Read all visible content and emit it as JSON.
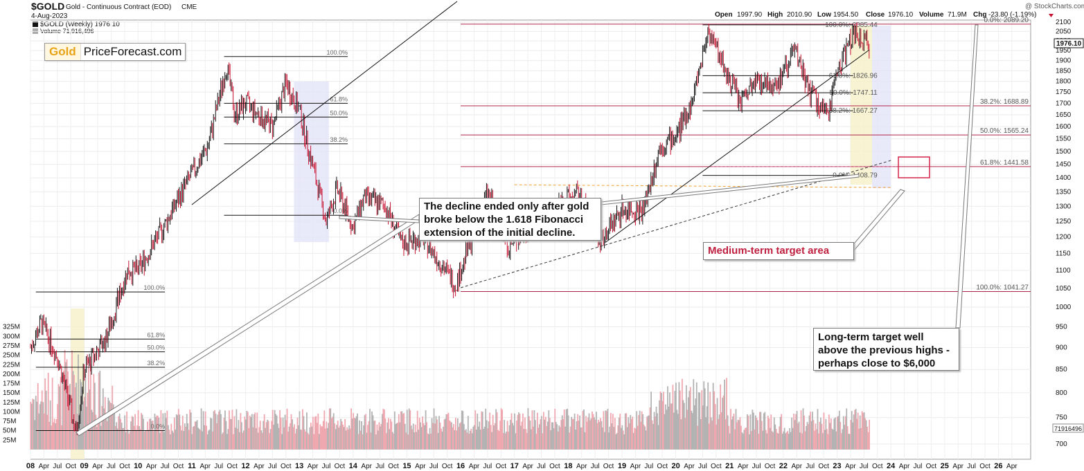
{
  "header": {
    "symbol": "$GOLD",
    "name": "Gold - Continuous Contract (EOD)",
    "exchange": "CME",
    "date": "4-Aug-2023",
    "legend_price": "$GOLD (Weekly) 1976.10",
    "legend_volume": "Volume 71,916,496",
    "watermark": "@ StockCharts.com",
    "ohlc": {
      "open_label": "Open",
      "open": "1997.90",
      "high_label": "High",
      "high": "2010.90",
      "low_label": "Low",
      "low": "1954.50",
      "close_label": "Close",
      "close": "1976.10",
      "volume_label": "Volume",
      "volume": "71.9M",
      "chg_label": "Chg",
      "chg": "-23.80 (-1.19%)"
    }
  },
  "logo": {
    "gold": "Gold",
    "rest": "PriceForecast.com"
  },
  "annotations": {
    "decline": "The decline ended only after gold broke below the 1.618 Fibonacci extension of the initial decline.",
    "long_term": "Long-term target well above the previous highs - perhaps close to $6,000",
    "medium_term": "Medium-term target area"
  },
  "colors": {
    "up": "#111111",
    "down": "#c8102e",
    "fib_line": "#b0244a",
    "vol_up": "#b3b3b3",
    "vol_down": "#f0a8b0",
    "highlight_blue": "#e2e4f7",
    "highlight_yellow": "#f5f0c8",
    "target_box": "#d6244a"
  },
  "chart_data": {
    "type": "candlestick",
    "price_axis_ticks": [
      700,
      750,
      800,
      850,
      900,
      950,
      1000,
      1050,
      1100,
      1150,
      1200,
      1250,
      1300,
      1350,
      1400,
      1450,
      1500,
      1550,
      1600,
      1650,
      1700,
      1750,
      1800,
      1850,
      1900,
      1950,
      2000,
      2050,
      2100
    ],
    "price_axis_scale": "log",
    "volume_axis_ticks": [
      "25M",
      "50M",
      "75M",
      "100M",
      "125M",
      "150M",
      "175M",
      "200M",
      "225M",
      "250M",
      "275M",
      "300M",
      "325M"
    ],
    "x_labels": [
      "08",
      "Apr",
      "Jul",
      "Oct",
      "09",
      "Apr",
      "Jul",
      "Oct",
      "10",
      "Apr",
      "Jul",
      "Oct",
      "11",
      "Apr",
      "Jul",
      "Oct",
      "12",
      "Apr",
      "Jul",
      "Oct",
      "13",
      "Apr",
      "Jul",
      "Oct",
      "14",
      "Apr",
      "Jul",
      "Oct",
      "15",
      "Apr",
      "Jul",
      "Oct",
      "16",
      "Apr",
      "Jul",
      "Oct",
      "17",
      "Apr",
      "Jul",
      "Oct",
      "18",
      "Apr",
      "Jul",
      "Oct",
      "19",
      "Apr",
      "Jul",
      "Oct",
      "20",
      "Apr",
      "Jul",
      "Oct",
      "21",
      "Apr",
      "Jul",
      "Oct",
      "22",
      "Apr",
      "Jul",
      "Oct",
      "23",
      "Apr",
      "Jul",
      "Oct",
      "24",
      "Apr",
      "Jul",
      "Oct",
      "25",
      "Apr",
      "Jul",
      "Oct",
      "26",
      "Apr"
    ],
    "current_price_label": "1976.10",
    "current_volume_label": "71916496",
    "price_path": [
      [
        2008.0,
        900
      ],
      [
        2008.2,
        960
      ],
      [
        2008.5,
        880
      ],
      [
        2008.85,
        720
      ],
      [
        2009.0,
        850
      ],
      [
        2009.4,
        920
      ],
      [
        2009.8,
        1100
      ],
      [
        2010.0,
        1100
      ],
      [
        2010.5,
        1240
      ],
      [
        2010.9,
        1380
      ],
      [
        2011.3,
        1520
      ],
      [
        2011.65,
        1880
      ],
      [
        2011.8,
        1650
      ],
      [
        2012.0,
        1700
      ],
      [
        2012.5,
        1600
      ],
      [
        2012.75,
        1790
      ],
      [
        2013.0,
        1670
      ],
      [
        2013.3,
        1400
      ],
      [
        2013.5,
        1250
      ],
      [
        2013.7,
        1360
      ],
      [
        2014.0,
        1230
      ],
      [
        2014.2,
        1330
      ],
      [
        2014.6,
        1300
      ],
      [
        2014.9,
        1180
      ],
      [
        2015.3,
        1200
      ],
      [
        2015.9,
        1060
      ],
      [
        2016.0,
        1100
      ],
      [
        2016.5,
        1350
      ],
      [
        2016.9,
        1170
      ],
      [
        2017.5,
        1270
      ],
      [
        2017.9,
        1320
      ],
      [
        2018.2,
        1340
      ],
      [
        2018.6,
        1190
      ],
      [
        2019.0,
        1290
      ],
      [
        2019.4,
        1290
      ],
      [
        2019.7,
        1520
      ],
      [
        2020.0,
        1560
      ],
      [
        2020.3,
        1700
      ],
      [
        2020.6,
        2060
      ],
      [
        2020.9,
        1870
      ],
      [
        2021.2,
        1700
      ],
      [
        2021.5,
        1800
      ],
      [
        2021.9,
        1790
      ],
      [
        2022.2,
        1950
      ],
      [
        2022.5,
        1750
      ],
      [
        2022.8,
        1640
      ],
      [
        2023.0,
        1850
      ],
      [
        2023.3,
        2040
      ],
      [
        2023.6,
        1970
      ]
    ],
    "fib_levels_right": [
      {
        "label": "0.0%: 2089.20",
        "value": 2089.2
      },
      {
        "label": "38.2%: 1688.89",
        "value": 1688.89
      },
      {
        "label": "50.0%: 1565.24",
        "value": 1565.24
      },
      {
        "label": "61.8%: 1441.58",
        "value": 1441.58
      },
      {
        "label": "100.0%: 1041.27",
        "value": 1041.27
      }
    ],
    "fib_levels_recent": [
      {
        "label": "100.0%: 2085.44",
        "value": 2085.44
      },
      {
        "label": "61.8%: 1826.96",
        "value": 1826.96
      },
      {
        "label": "50.0%: 1747.11",
        "value": 1747.11
      },
      {
        "label": "38.2%: 1667.27",
        "value": 1667.27
      },
      {
        "label": "0.0%: 1408.79",
        "value": 1408.79
      }
    ],
    "fib_levels_2011": [
      {
        "label": "100.0%",
        "value": 1920
      },
      {
        "label": "61.8%",
        "value": 1700
      },
      {
        "label": "50.0%",
        "value": 1640
      },
      {
        "label": "38.2%",
        "value": 1530
      },
      {
        "label": "0.0%",
        "value": 1270
      }
    ],
    "fib_levels_2008": [
      {
        "label": "100.0%",
        "value": 1040
      },
      {
        "label": "61.8%",
        "value": 920
      },
      {
        "label": "50.0%",
        "value": 890
      },
      {
        "label": "38.2%",
        "value": 855
      },
      {
        "label": "0.0%",
        "value": 725
      }
    ]
  }
}
